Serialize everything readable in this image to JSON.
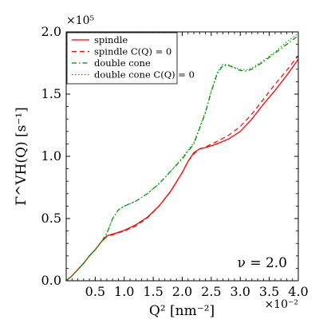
{
  "chart_data": {
    "type": "line",
    "xlabel": "Q² [nm⁻²]",
    "ylabel": "Γ^VH(Q) [s⁻¹]",
    "x_multiplier": "×10⁻²",
    "y_multiplier": "×10⁵",
    "xlim": [
      0.0,
      4.0
    ],
    "ylim": [
      0.0,
      2.0
    ],
    "x_ticks": [
      "0.5",
      "1.0",
      "1.5",
      "2.0",
      "2.5",
      "3.0",
      "3.5",
      "4.0"
    ],
    "y_ticks": [
      "0.0",
      "0.5",
      "1.0",
      "1.5",
      "2.0"
    ],
    "grid": false,
    "legend_position": "top-left",
    "annotation": "ν = 2.0",
    "series": [
      {
        "name": "spindle",
        "color": "#ff0000",
        "style": "solid",
        "x": [
          0.0,
          0.1,
          0.2,
          0.3,
          0.4,
          0.5,
          0.6,
          0.7,
          0.8,
          0.9,
          1.0,
          1.2,
          1.4,
          1.6,
          1.8,
          2.0,
          2.1,
          2.2,
          2.3,
          2.4,
          2.6,
          2.8,
          3.0,
          3.2,
          3.4,
          3.6,
          3.8,
          4.0
        ],
        "y": [
          0.0,
          0.04,
          0.09,
          0.14,
          0.2,
          0.25,
          0.31,
          0.36,
          0.375,
          0.39,
          0.405,
          0.45,
          0.51,
          0.6,
          0.72,
          0.87,
          0.96,
          1.03,
          1.06,
          1.07,
          1.1,
          1.14,
          1.2,
          1.3,
          1.42,
          1.53,
          1.65,
          1.78
        ]
      },
      {
        "name": "spindle C(Q) = 0",
        "color": "#ff0000",
        "style": "dashed",
        "x": [
          0.0,
          0.1,
          0.2,
          0.3,
          0.4,
          0.5,
          0.6,
          0.7,
          0.8,
          0.9,
          1.0,
          1.2,
          1.4,
          1.6,
          1.8,
          2.0,
          2.1,
          2.2,
          2.3,
          2.4,
          2.6,
          2.8,
          3.0,
          3.2,
          3.4,
          3.6,
          3.8,
          4.0
        ],
        "y": [
          0.0,
          0.04,
          0.09,
          0.14,
          0.2,
          0.25,
          0.31,
          0.355,
          0.37,
          0.385,
          0.4,
          0.44,
          0.505,
          0.6,
          0.72,
          0.87,
          0.96,
          1.02,
          1.06,
          1.075,
          1.12,
          1.17,
          1.24,
          1.34,
          1.46,
          1.58,
          1.69,
          1.81
        ]
      },
      {
        "name": "double cone",
        "color": "#008000",
        "style": "dashdot",
        "x": [
          0.0,
          0.1,
          0.2,
          0.3,
          0.4,
          0.5,
          0.6,
          0.7,
          0.8,
          0.9,
          1.0,
          1.2,
          1.4,
          1.6,
          1.8,
          2.0,
          2.2,
          2.4,
          2.5,
          2.6,
          2.7,
          2.8,
          2.9,
          3.0,
          3.1,
          3.2,
          3.4,
          3.6,
          3.8,
          4.0
        ],
        "y": [
          0.0,
          0.04,
          0.09,
          0.14,
          0.2,
          0.25,
          0.31,
          0.38,
          0.5,
          0.57,
          0.6,
          0.64,
          0.7,
          0.78,
          0.88,
          0.98,
          1.1,
          1.35,
          1.52,
          1.66,
          1.73,
          1.73,
          1.71,
          1.69,
          1.685,
          1.7,
          1.76,
          1.83,
          1.9,
          1.97
        ]
      },
      {
        "name": "double cone C(Q) = 0",
        "color": "#00b000",
        "style": "dotted",
        "x": [
          0.0,
          0.1,
          0.2,
          0.3,
          0.4,
          0.5,
          0.6,
          0.7,
          0.8,
          0.9,
          1.0,
          1.2,
          1.4,
          1.6,
          1.8,
          2.0,
          2.2,
          2.4,
          2.5,
          2.6,
          2.7,
          2.8,
          2.9,
          3.0,
          3.1,
          3.2,
          3.4,
          3.6,
          3.8,
          4.0
        ],
        "y": [
          0.0,
          0.04,
          0.09,
          0.14,
          0.2,
          0.25,
          0.31,
          0.38,
          0.5,
          0.57,
          0.6,
          0.64,
          0.7,
          0.78,
          0.88,
          0.99,
          1.11,
          1.36,
          1.53,
          1.67,
          1.74,
          1.735,
          1.715,
          1.7,
          1.695,
          1.71,
          1.77,
          1.84,
          1.92,
          1.99
        ]
      }
    ]
  }
}
